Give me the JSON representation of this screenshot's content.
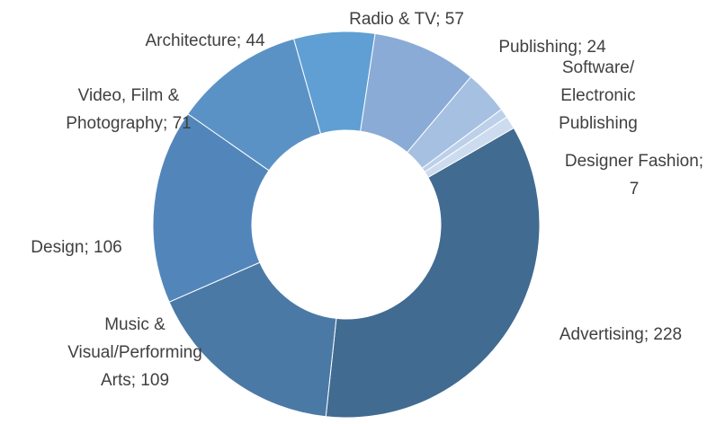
{
  "chart_data": {
    "type": "donut",
    "categories": [
      "Advertising",
      "Music & Visual/Performing Arts",
      "Design",
      "Video, Film & Photography",
      "Architecture",
      "Radio & TV",
      "Publishing",
      "Software/Electronic Publishing",
      "Designer Fashion"
    ],
    "values": [
      228,
      109,
      106,
      71,
      44,
      57,
      24,
      5,
      7
    ],
    "value_labels": [
      "Advertising; 228",
      "Music &\nVisual/Performing\nArts; 109",
      "Design; 106",
      "Video, Film &\nPhotography; 71",
      "Architecture; 44",
      "Radio & TV; 57",
      "Publishing; 24",
      "Software/\nElectronic\nPublishing",
      "Designer Fashion;\n7"
    ],
    "colors": [
      "#416b91",
      "#4a79a6",
      "#5286ba",
      "#5b92c6",
      "#5f9fd3",
      "#8aabd6",
      "#a6c0e1",
      "#bdd0ea",
      "#cddbee"
    ]
  }
}
